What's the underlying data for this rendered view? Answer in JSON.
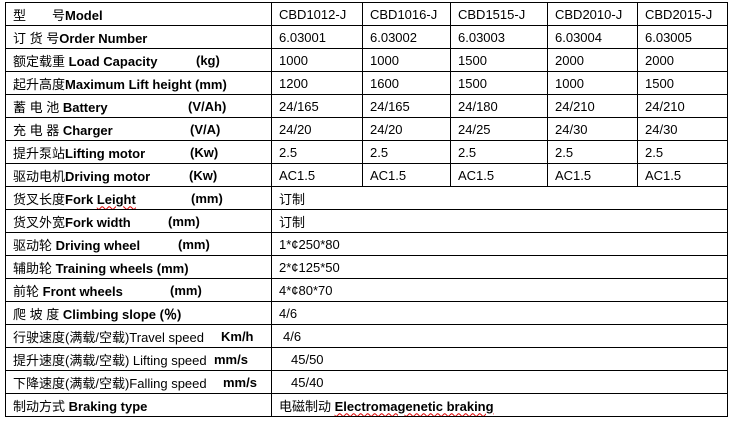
{
  "table": {
    "rows": [
      {
        "cn": "型　　号",
        "en": "Model",
        "unit": "",
        "values": [
          "CBD1012-J",
          "CBD1016-J",
          "CBD1515-J",
          "CBD2010-J",
          "CBD2015-J"
        ]
      },
      {
        "cn": "订 货 号",
        "en": "Order Number",
        "unit": "",
        "values": [
          "6.03001",
          "6.03002",
          "6.03003",
          "6.03004",
          "6.03005"
        ]
      },
      {
        "cn": "额定载重 ",
        "en": "Load Capacity",
        "unit": "(kg)",
        "values": [
          "1000",
          "1000",
          "1500",
          "2000",
          "2000"
        ]
      },
      {
        "cn": "起升高度",
        "en": "Maximum Lift height",
        "unit": "(mm)",
        "values": [
          "1200",
          "1600",
          "1500",
          "1000",
          "1500"
        ]
      },
      {
        "cn": "蓄 电 池 ",
        "en": "Battery",
        "unit": "(V/Ah)",
        "values": [
          "24/165",
          "24/165",
          "24/180",
          "24/210",
          "24/210"
        ]
      },
      {
        "cn": "充 电 器 ",
        "en": "Charger",
        "unit": "(V/A)",
        "values": [
          "24/20",
          "24/20",
          "24/25",
          "24/30",
          "24/30"
        ]
      },
      {
        "cn": "提升泵站",
        "en": "Lifting motor",
        "unit": "(Kw)",
        "values": [
          "2.5",
          "2.5",
          "2.5",
          "2.5",
          "2.5"
        ]
      },
      {
        "cn": "驱动电机",
        "en": "Driving motor",
        "unit": "(Kw)",
        "values": [
          "AC1.5",
          "AC1.5",
          "AC1.5",
          "AC1.5",
          "AC1.5"
        ]
      },
      {
        "cn": "货叉长度",
        "en": "Fork Leight",
        "unit": "(mm)",
        "value": "订制"
      },
      {
        "cn": "货叉外宽",
        "en": "Fork width",
        "unit": "(mm)",
        "value": "订制"
      },
      {
        "cn": "驱动轮 ",
        "en": "Driving wheel",
        "unit": "(mm)",
        "value": "1*¢250*80"
      },
      {
        "cn": "辅助轮 ",
        "en": "Training wheels",
        "unit": "(mm)",
        "value": "2*¢125*50"
      },
      {
        "cn": "前轮 ",
        "en": "Front wheels",
        "unit": "(mm)",
        "value": "4*¢80*70"
      },
      {
        "cn": "爬 坡 度 ",
        "en": "Climbing slope",
        "unit": "(％)",
        "value": "4/6"
      },
      {
        "cn": "行驶速度(满载/空载)",
        "en": "Travel speed",
        "unit": "Km/h",
        "value": "4/6"
      },
      {
        "cn": "提升速度(满载/空载) ",
        "en": "Lifting speed",
        "unit": "mm/s",
        "value": "45/50"
      },
      {
        "cn": "下降速度(满载/空载)",
        "en": "Falling speed",
        "unit": "mm/s",
        "value": "45/40"
      },
      {
        "cn": "制动方式 ",
        "en": "Braking type",
        "unit": "",
        "value_cn": "电磁制动 ",
        "value": "Electromagenetic braking"
      }
    ]
  }
}
